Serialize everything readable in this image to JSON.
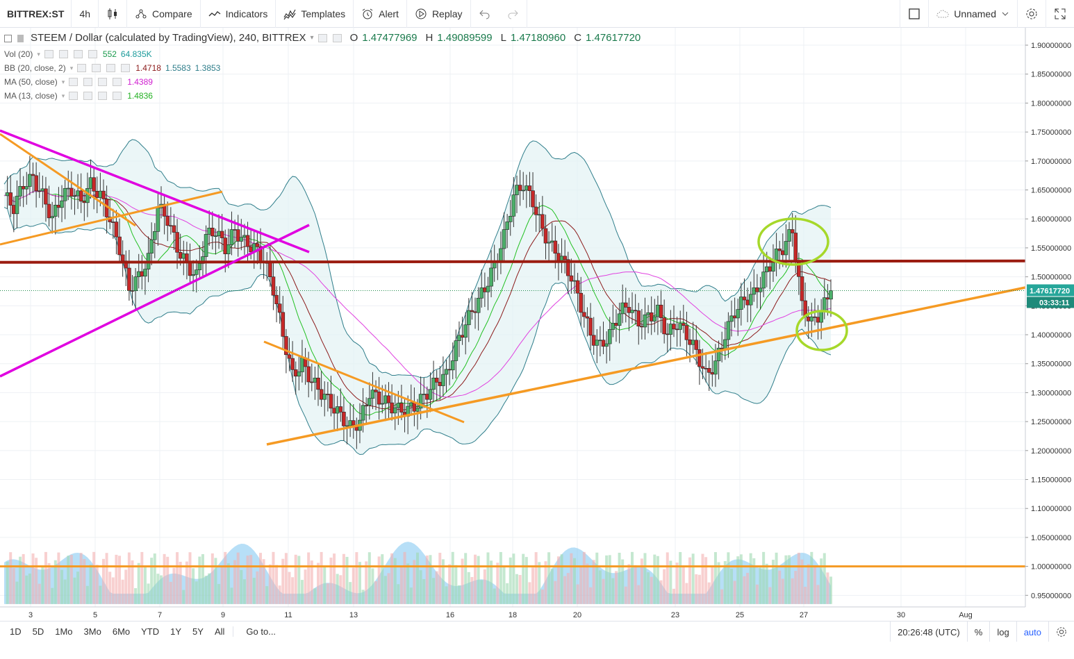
{
  "toolbar": {
    "symbol": "BITTREX:ST",
    "interval": "4h",
    "compare": "Compare",
    "indicators": "Indicators",
    "templates": "Templates",
    "alert": "Alert",
    "replay": "Replay",
    "layout_name": "Unnamed"
  },
  "legend": {
    "title": "STEEM / Dollar (calculated by TradingView), 240, BITTREX",
    "o_label": "O",
    "o": "1.47477969",
    "h_label": "H",
    "h": "1.49089599",
    "l_label": "L",
    "l": "1.47180960",
    "c_label": "C",
    "c": "1.47617720",
    "vol_label": "Vol (20)",
    "vol_v1": "552",
    "vol_v2": "64.835K",
    "bb_label": "BB (20, close, 2)",
    "bb_v1": "1.4718",
    "bb_v2": "1.5583",
    "bb_v3": "1.3853",
    "ma50_label": "MA (50, close)",
    "ma50_v": "1.4389",
    "ma13_label": "MA (13, close)",
    "ma13_v": "1.4836"
  },
  "price_scale": {
    "ticks": [
      "1.90000000",
      "1.85000000",
      "1.80000000",
      "1.75000000",
      "1.70000000",
      "1.65000000",
      "1.60000000",
      "1.55000000",
      "1.50000000",
      "1.45000000",
      "1.40000000",
      "1.35000000",
      "1.30000000",
      "1.25000000",
      "1.20000000",
      "1.15000000",
      "1.10000000",
      "1.05000000",
      "1.00000000",
      "0.95000000"
    ],
    "last_price": "1.47617720",
    "countdown": "03:33:11"
  },
  "time_scale": {
    "ticks": [
      "3",
      "5",
      "7",
      "9",
      "11",
      "13",
      "16",
      "18",
      "20",
      "23",
      "25",
      "27",
      "30",
      "Aug"
    ]
  },
  "bottom": {
    "ranges": [
      "1D",
      "5D",
      "1Mo",
      "3Mo",
      "6Mo",
      "YTD",
      "1Y",
      "5Y",
      "All"
    ],
    "goto": "Go to...",
    "time": "20:26:48 (UTC)",
    "pct": "%",
    "log": "log",
    "auto": "auto"
  },
  "colors": {
    "up": "#26a69a",
    "down": "#ef5350",
    "bb": "#2e7d8a",
    "bb_fill": "#e3f2f3",
    "ma50": "#e040e0",
    "ma13": "#22c022",
    "basis": "#8b1a1a",
    "trend_orange": "#f59a23",
    "trend_magenta": "#e000e0",
    "support_red": "#9b1c10",
    "circle": "#a6d82a",
    "vol_area": "#7cc4f0"
  },
  "chart_data": {
    "type": "candlestick",
    "symbol": "STEEM / Dollar",
    "interval": "240",
    "ylim": [
      0.93,
      1.93
    ],
    "x_dates": [
      "Jul 3",
      "Jul 5",
      "Jul 7",
      "Jul 9",
      "Jul 11",
      "Jul 13",
      "Jul 16",
      "Jul 18",
      "Jul 20",
      "Jul 23",
      "Jul 25",
      "Jul 27",
      "Jul 30",
      "Aug 1"
    ],
    "close_path": [
      1.64,
      1.62,
      1.66,
      1.67,
      1.64,
      1.6,
      1.64,
      1.65,
      1.63,
      1.66,
      1.64,
      1.6,
      1.55,
      1.48,
      1.5,
      1.53,
      1.62,
      1.6,
      1.55,
      1.52,
      1.5,
      1.57,
      1.58,
      1.55,
      1.58,
      1.56,
      1.55,
      1.53,
      1.48,
      1.4,
      1.33,
      1.35,
      1.32,
      1.3,
      1.28,
      1.26,
      1.24,
      1.25,
      1.3,
      1.29,
      1.28,
      1.27,
      1.27,
      1.28,
      1.3,
      1.32,
      1.33,
      1.38,
      1.42,
      1.45,
      1.48,
      1.52,
      1.57,
      1.64,
      1.66,
      1.63,
      1.58,
      1.55,
      1.53,
      1.5,
      1.45,
      1.4,
      1.38,
      1.4,
      1.44,
      1.45,
      1.42,
      1.43,
      1.44,
      1.4,
      1.42,
      1.4,
      1.37,
      1.33,
      1.35,
      1.4,
      1.44,
      1.46,
      1.47,
      1.5,
      1.53,
      1.55,
      1.58,
      1.45,
      1.42,
      1.44,
      1.476
    ],
    "bb_upper_level": 1.5583,
    "bb_lower_level": 1.3853,
    "bb_basis_level": 1.4718,
    "ma50_level": 1.4389,
    "ma13_level": 1.4836,
    "support_line": 1.525,
    "volume_ma_line": 1.0
  }
}
